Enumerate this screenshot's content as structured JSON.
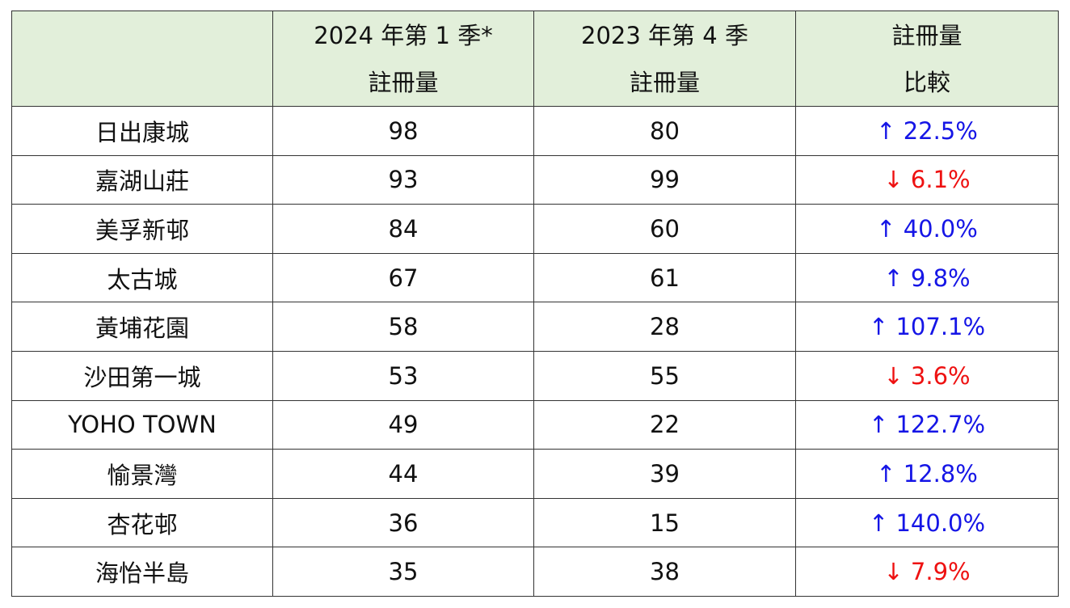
{
  "table": {
    "header": [
      [
        "2024 年第 1 季*",
        "註冊量"
      ],
      [
        "2023 年第 4 季",
        "註冊量"
      ],
      [
        "註冊量",
        "比較"
      ]
    ],
    "rows": [
      [
        "日出康城",
        98,
        80,
        "↑ 22.5%"
      ],
      [
        "嘉湖山莊",
        93,
        99,
        "↓ 6.1%"
      ],
      [
        "美孚新邨",
        84,
        60,
        "↑ 40.0%"
      ],
      [
        "太古城",
        67,
        61,
        "↑ 9.8%"
      ],
      [
        "黃埔花園",
        58,
        28,
        "↑ 107.1%"
      ],
      [
        "沙田第一城",
        53,
        55,
        "↓ 3.6%"
      ],
      [
        "YOHO TOWN",
        49,
        22,
        "↑ 122.7%"
      ],
      [
        "愉景灣",
        44,
        39,
        "↑ 12.8%"
      ],
      [
        "杏花邨",
        36,
        15,
        "↑ 140.0%"
      ],
      [
        "海怡半島",
        35,
        38,
        "↓ 7.9%"
      ]
    ]
  }
}
